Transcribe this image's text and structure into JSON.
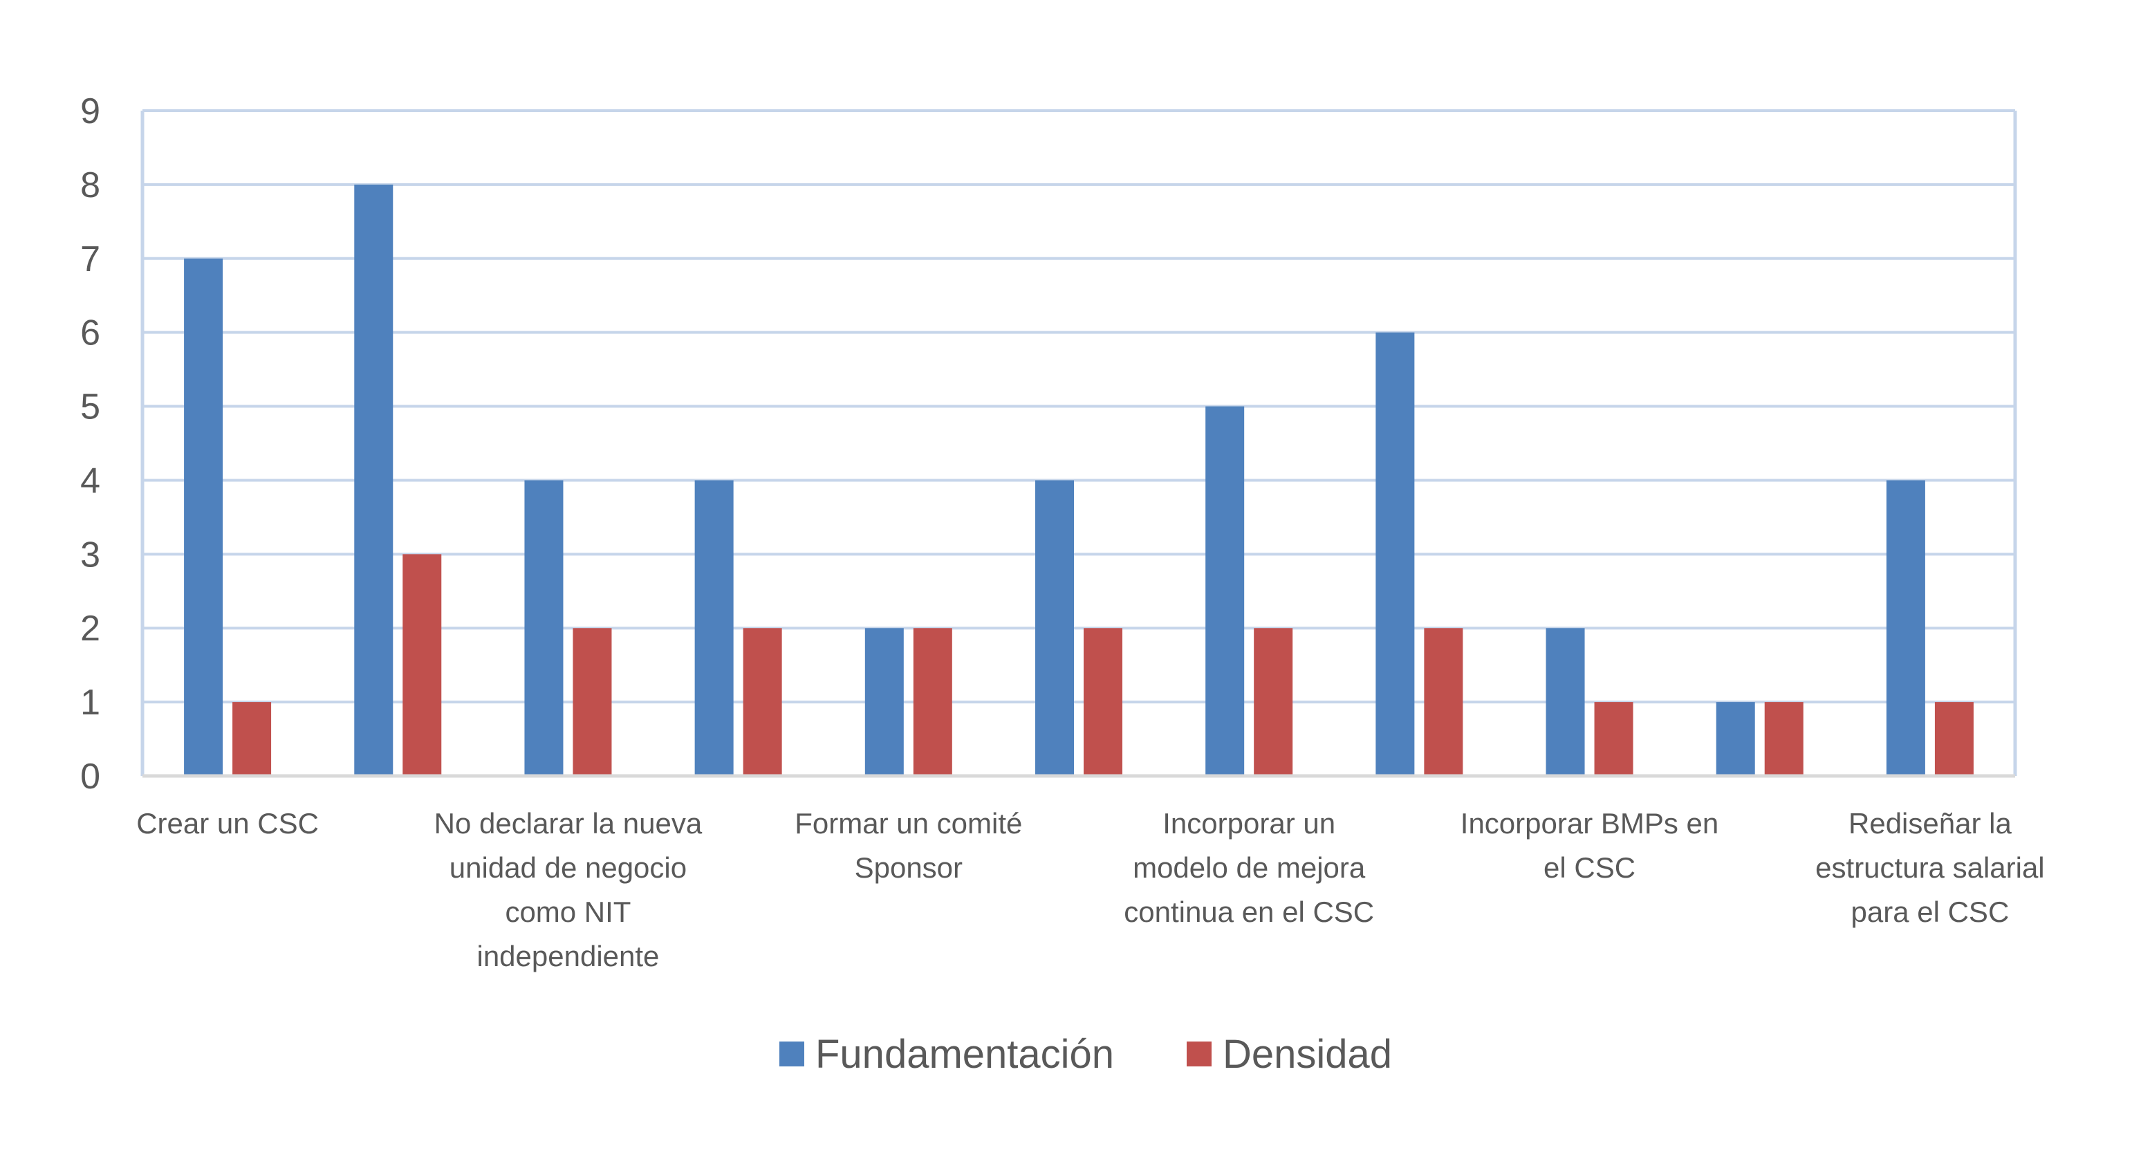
{
  "chart_data": {
    "type": "bar",
    "title": "",
    "xlabel": "",
    "ylabel": "",
    "ylim": [
      0,
      9
    ],
    "yticks": [
      0,
      1,
      2,
      3,
      4,
      5,
      6,
      7,
      8,
      9
    ],
    "grid": true,
    "legend_position": "bottom",
    "categories": [
      "Crear un CSC",
      "",
      "No declarar la nueva unidad de negocio como NIT independiente",
      "",
      "Formar un comité Sponsor",
      "",
      "Incorporar un modelo de mejora continua en el CSC",
      "",
      "Incorporar BMPs en el CSC",
      "",
      "Rediseñar la estructura salarial para el CSC"
    ],
    "category_label_lines": [
      [
        "Crear un CSC"
      ],
      [],
      [
        "No declarar la nueva",
        "unidad de negocio",
        "como NIT",
        "independiente"
      ],
      [],
      [
        "Formar un comité",
        "Sponsor"
      ],
      [],
      [
        "Incorporar un",
        "modelo de mejora",
        "continua en el CSC"
      ],
      [],
      [
        "Incorporar BMPs en",
        "el CSC"
      ],
      [],
      [
        "Rediseñar la",
        "estructura salarial",
        "para el CSC"
      ]
    ],
    "series": [
      {
        "name": "Fundamentación",
        "color": "#4F81BD",
        "values": [
          7,
          8,
          4,
          4,
          2,
          4,
          5,
          6,
          2,
          1,
          4
        ]
      },
      {
        "name": "Densidad",
        "color": "#C0504D",
        "values": [
          1,
          3,
          2,
          2,
          2,
          2,
          2,
          2,
          1,
          1,
          1
        ]
      }
    ],
    "colors": {
      "grid": "#C6D5EA",
      "axis": "#D9D9D9",
      "text": "#595959"
    }
  }
}
